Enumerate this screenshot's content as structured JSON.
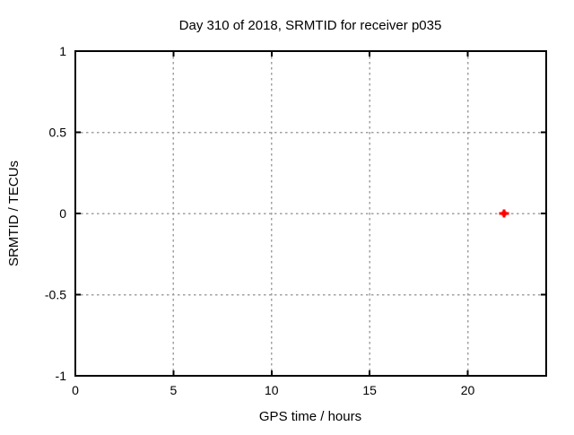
{
  "window": {
    "background": "#ffffff"
  },
  "chart_data": {
    "type": "scatter",
    "title": "Day 310 of 2018, SRMTID for receiver p035",
    "xlabel": "GPS time / hours",
    "ylabel": "SRMTID / TECUs",
    "xlim": [
      0,
      24
    ],
    "ylim": [
      -1,
      1
    ],
    "xticks": {
      "values": [
        0,
        5,
        10,
        15,
        20
      ],
      "labels": [
        "0",
        "5",
        "10",
        "15",
        "20"
      ]
    },
    "yticks": {
      "values": [
        -1,
        -0.5,
        0,
        0.5,
        1
      ],
      "labels": [
        "-1",
        "-0.5",
        "0",
        "0.5",
        "1"
      ]
    },
    "grid": true,
    "legend_position": "none",
    "series": [
      {
        "name": "SRMTID",
        "marker": "filled-square-plus",
        "color": "#ff0000",
        "points": [
          {
            "x": 21.85,
            "y": 0.0
          }
        ]
      }
    ],
    "colors": {
      "background": "#ffffff",
      "border": "#000000",
      "grid": "#a0a0a0",
      "text": "#000000",
      "marker": "#ff0000"
    }
  }
}
